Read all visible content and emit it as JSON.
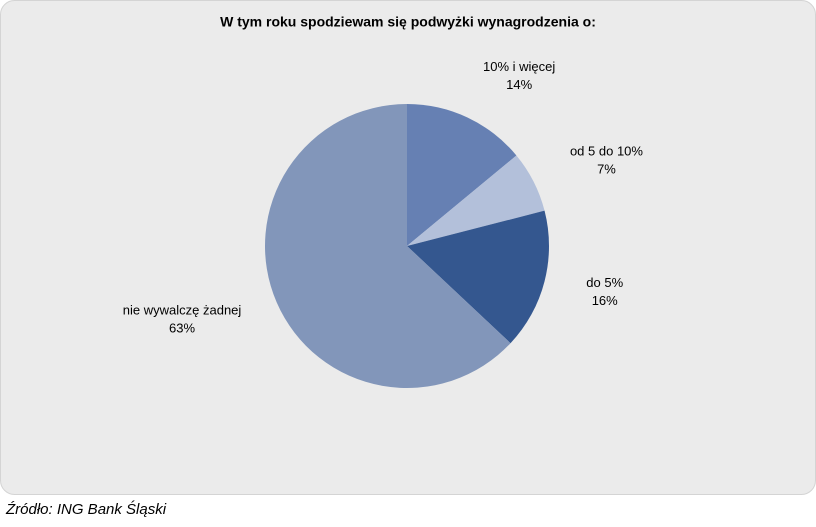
{
  "chart_data": {
    "type": "pie",
    "title": "W tym roku spodziewam się podwyżki wynagrodzenia o:",
    "categories": [
      "10% i więcej",
      "od 5 do 10%",
      "do 5%",
      "nie wywalczę żadnej"
    ],
    "values": [
      14,
      7,
      16,
      63
    ],
    "value_labels": [
      "14%",
      "7%",
      "16%",
      "63%"
    ],
    "colors": [
      "#6680b3",
      "#b3c0da",
      "#34578f",
      "#8296ba"
    ],
    "source": "Źródło: ING Bank Śląski"
  }
}
